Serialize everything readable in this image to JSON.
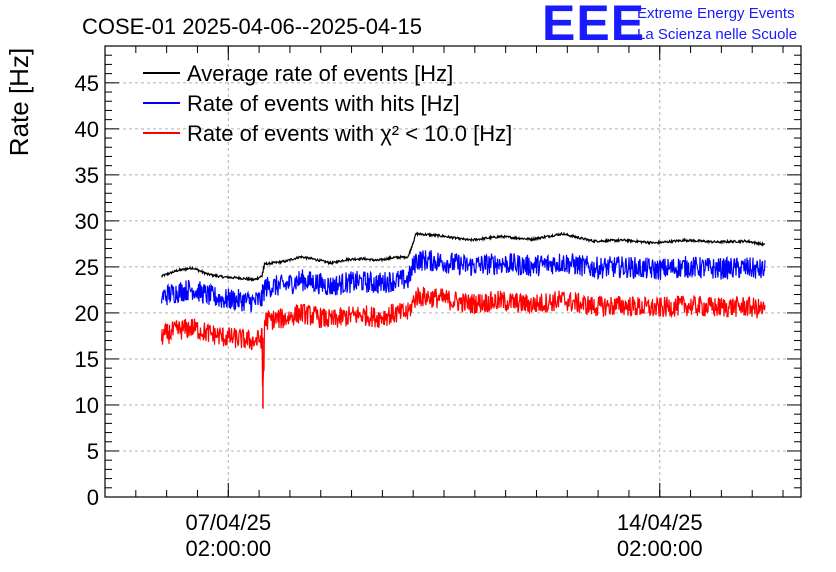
{
  "logo": {
    "mark": "EEE",
    "line1": "Extreme Energy Events",
    "line2": "La Scienza nelle Scuole",
    "color": "#1a1aff"
  },
  "chart_data": {
    "type": "line",
    "title": "COSE-01 2025-04-06--2025-04-15",
    "ylabel": "Rate [Hz]",
    "xlabel": "",
    "x_type": "datetime",
    "xlim": [
      "2025-04-05 02:00",
      "2025-04-16 09:00"
    ],
    "ylim": [
      0,
      49
    ],
    "y_ticks": [
      0,
      5,
      10,
      15,
      20,
      25,
      30,
      35,
      40,
      45
    ],
    "x_ticks": [
      {
        "at": "2025-04-07 02:00",
        "line1": "07/04/25",
        "line2": "02:00:00"
      },
      {
        "at": "2025-04-14 02:00",
        "line1": "14/04/25",
        "line2": "02:00:00"
      }
    ],
    "grid": true,
    "legend_position": "top-left",
    "series": [
      {
        "name": "Average rate of events [Hz]",
        "color": "#000000",
        "points": [
          [
            "2025-04-06 00:00",
            24.0
          ],
          [
            "2025-04-06 06:00",
            24.6
          ],
          [
            "2025-04-06 12:00",
            24.9
          ],
          [
            "2025-04-06 18:00",
            24.2
          ],
          [
            "2025-04-07 00:00",
            23.9
          ],
          [
            "2025-04-07 06:00",
            23.8
          ],
          [
            "2025-04-07 12:00",
            23.6
          ],
          [
            "2025-04-07 15:00",
            24.0
          ],
          [
            "2025-04-07 16:00",
            25.3
          ],
          [
            "2025-04-08 00:00",
            25.6
          ],
          [
            "2025-04-08 06:00",
            26.1
          ],
          [
            "2025-04-08 12:00",
            25.8
          ],
          [
            "2025-04-08 18:00",
            25.4
          ],
          [
            "2025-04-09 00:00",
            25.8
          ],
          [
            "2025-04-09 06:00",
            25.9
          ],
          [
            "2025-04-09 12:00",
            25.7
          ],
          [
            "2025-04-09 18:00",
            26.0
          ],
          [
            "2025-04-10 00:00",
            26.1
          ],
          [
            "2025-04-10 03:00",
            28.6
          ],
          [
            "2025-04-10 12:00",
            28.4
          ],
          [
            "2025-04-11 00:00",
            27.9
          ],
          [
            "2025-04-11 12:00",
            28.3
          ],
          [
            "2025-04-12 00:00",
            28.0
          ],
          [
            "2025-04-12 12:00",
            28.6
          ],
          [
            "2025-04-13 00:00",
            27.8
          ],
          [
            "2025-04-13 12:00",
            27.9
          ],
          [
            "2025-04-14 00:00",
            27.6
          ],
          [
            "2025-04-14 12:00",
            27.9
          ],
          [
            "2025-04-15 00:00",
            27.7
          ],
          [
            "2025-04-15 12:00",
            27.8
          ],
          [
            "2025-04-15 19:00",
            27.4
          ]
        ]
      },
      {
        "name": "Rate of events with hits [Hz]",
        "color": "#0000ff",
        "points": [
          [
            "2025-04-06 00:00",
            21.8
          ],
          [
            "2025-04-06 06:00",
            22.3
          ],
          [
            "2025-04-06 12:00",
            22.6
          ],
          [
            "2025-04-06 18:00",
            21.9
          ],
          [
            "2025-04-07 00:00",
            21.5
          ],
          [
            "2025-04-07 06:00",
            21.4
          ],
          [
            "2025-04-07 12:00",
            21.2
          ],
          [
            "2025-04-07 15:00",
            21.5
          ],
          [
            "2025-04-07 16:00",
            22.8
          ],
          [
            "2025-04-08 00:00",
            23.0
          ],
          [
            "2025-04-08 06:00",
            23.6
          ],
          [
            "2025-04-08 12:00",
            23.3
          ],
          [
            "2025-04-08 18:00",
            22.9
          ],
          [
            "2025-04-09 00:00",
            23.3
          ],
          [
            "2025-04-09 06:00",
            23.4
          ],
          [
            "2025-04-09 12:00",
            23.2
          ],
          [
            "2025-04-09 18:00",
            23.5
          ],
          [
            "2025-04-10 00:00",
            23.6
          ],
          [
            "2025-04-10 03:00",
            25.8
          ],
          [
            "2025-04-10 12:00",
            25.6
          ],
          [
            "2025-04-11 00:00",
            25.1
          ],
          [
            "2025-04-11 12:00",
            25.4
          ],
          [
            "2025-04-12 00:00",
            25.1
          ],
          [
            "2025-04-12 12:00",
            25.5
          ],
          [
            "2025-04-13 00:00",
            24.9
          ],
          [
            "2025-04-13 12:00",
            25.0
          ],
          [
            "2025-04-14 00:00",
            24.7
          ],
          [
            "2025-04-14 12:00",
            25.0
          ],
          [
            "2025-04-15 00:00",
            24.8
          ],
          [
            "2025-04-15 12:00",
            24.9
          ],
          [
            "2025-04-15 19:00",
            24.6
          ]
        ]
      },
      {
        "name": "Rate of events with χ² < 10.0 [Hz]",
        "color": "#ff0000",
        "points": [
          [
            "2025-04-06 00:00",
            17.5
          ],
          [
            "2025-04-06 06:00",
            18.1
          ],
          [
            "2025-04-06 12:00",
            18.4
          ],
          [
            "2025-04-06 18:00",
            17.8
          ],
          [
            "2025-04-07 00:00",
            17.4
          ],
          [
            "2025-04-07 06:00",
            17.2
          ],
          [
            "2025-04-07 12:00",
            16.9
          ],
          [
            "2025-04-07 15:00",
            17.3
          ],
          [
            "2025-04-07 15:30",
            9.6
          ],
          [
            "2025-04-07 16:00",
            19.2
          ],
          [
            "2025-04-08 00:00",
            19.4
          ],
          [
            "2025-04-08 06:00",
            20.0
          ],
          [
            "2025-04-08 12:00",
            19.6
          ],
          [
            "2025-04-08 18:00",
            19.2
          ],
          [
            "2025-04-09 00:00",
            19.6
          ],
          [
            "2025-04-09 06:00",
            19.8
          ],
          [
            "2025-04-09 12:00",
            19.5
          ],
          [
            "2025-04-09 18:00",
            19.9
          ],
          [
            "2025-04-10 00:00",
            20.0
          ],
          [
            "2025-04-10 03:00",
            21.8
          ],
          [
            "2025-04-10 12:00",
            21.6
          ],
          [
            "2025-04-11 00:00",
            21.0
          ],
          [
            "2025-04-11 12:00",
            21.3
          ],
          [
            "2025-04-12 00:00",
            20.9
          ],
          [
            "2025-04-12 12:00",
            21.4
          ],
          [
            "2025-04-13 00:00",
            20.7
          ],
          [
            "2025-04-13 12:00",
            20.8
          ],
          [
            "2025-04-14 00:00",
            20.5
          ],
          [
            "2025-04-14 12:00",
            20.8
          ],
          [
            "2025-04-15 00:00",
            20.6
          ],
          [
            "2025-04-15 12:00",
            20.7
          ],
          [
            "2025-04-15 19:00",
            20.3
          ]
        ]
      }
    ],
    "band_noise_hz": [
      0.25,
      2.4,
      2.3
    ]
  }
}
